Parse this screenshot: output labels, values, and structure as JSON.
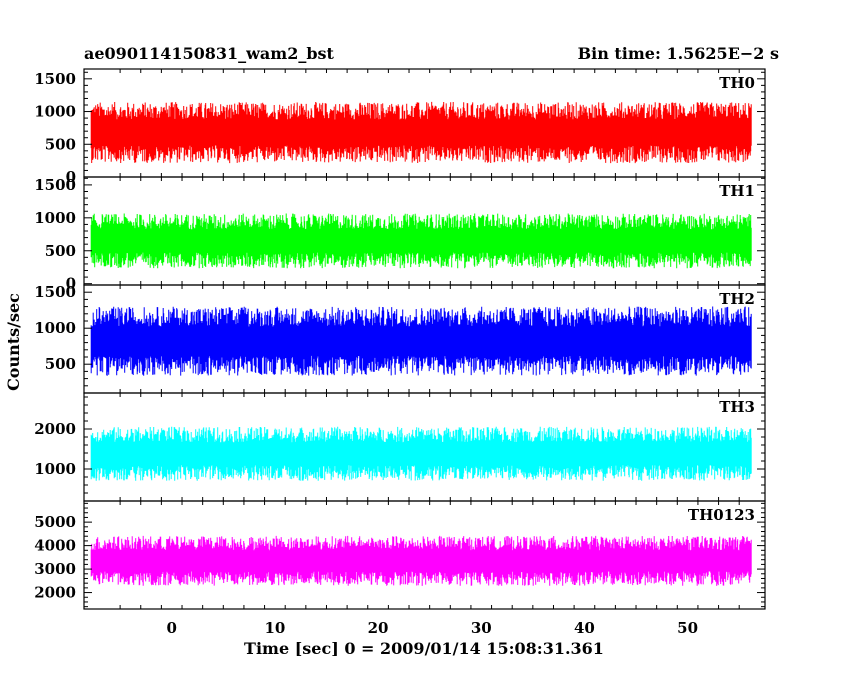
{
  "chart_data": {
    "type": "line",
    "title": "ae090114150831_wam2_bst",
    "subtitle": "Bin time: 1.5625E−2 s",
    "xlabel": "Time [sec] 0 = 2009/01/14 15:08:31.361",
    "ylabel": "Counts/sec",
    "xlim": [
      -8.5,
      57.5
    ],
    "x_ticks": [
      0,
      10,
      20,
      30,
      40,
      50
    ],
    "x_data_range": [
      -7.8,
      56.2
    ],
    "grid": false,
    "panels": [
      {
        "name": "TH0",
        "color": "#ff0000",
        "ylim": [
          0,
          1650
        ],
        "y_ticks": [
          0,
          500,
          1000,
          1500
        ],
        "baseline": 680,
        "noise": 360,
        "min_clip": 20,
        "max_clip": 1650
      },
      {
        "name": "TH1",
        "color": "#00ff00",
        "ylim": [
          -20,
          1620
        ],
        "y_ticks": [
          0,
          500,
          1000,
          1500
        ],
        "baseline": 650,
        "noise": 320,
        "min_clip": -20,
        "max_clip": 1620
      },
      {
        "name": "TH2",
        "color": "#0000ff",
        "ylim": [
          100,
          1600
        ],
        "y_ticks": [
          500,
          1000,
          1500
        ],
        "baseline": 820,
        "noise": 370,
        "min_clip": 100,
        "max_clip": 1600
      },
      {
        "name": "TH3",
        "color": "#00ffff",
        "ylim": [
          200,
          2900
        ],
        "y_ticks": [
          1000,
          2000
        ],
        "baseline": 1380,
        "noise": 520,
        "min_clip": 200,
        "max_clip": 2900
      },
      {
        "name": "TH0123",
        "color": "#ff00ff",
        "ylim": [
          1300,
          5900
        ],
        "y_ticks": [
          2000,
          3000,
          4000,
          5000
        ],
        "baseline": 3350,
        "noise": 820,
        "min_clip": 1300,
        "max_clip": 5900
      }
    ]
  }
}
